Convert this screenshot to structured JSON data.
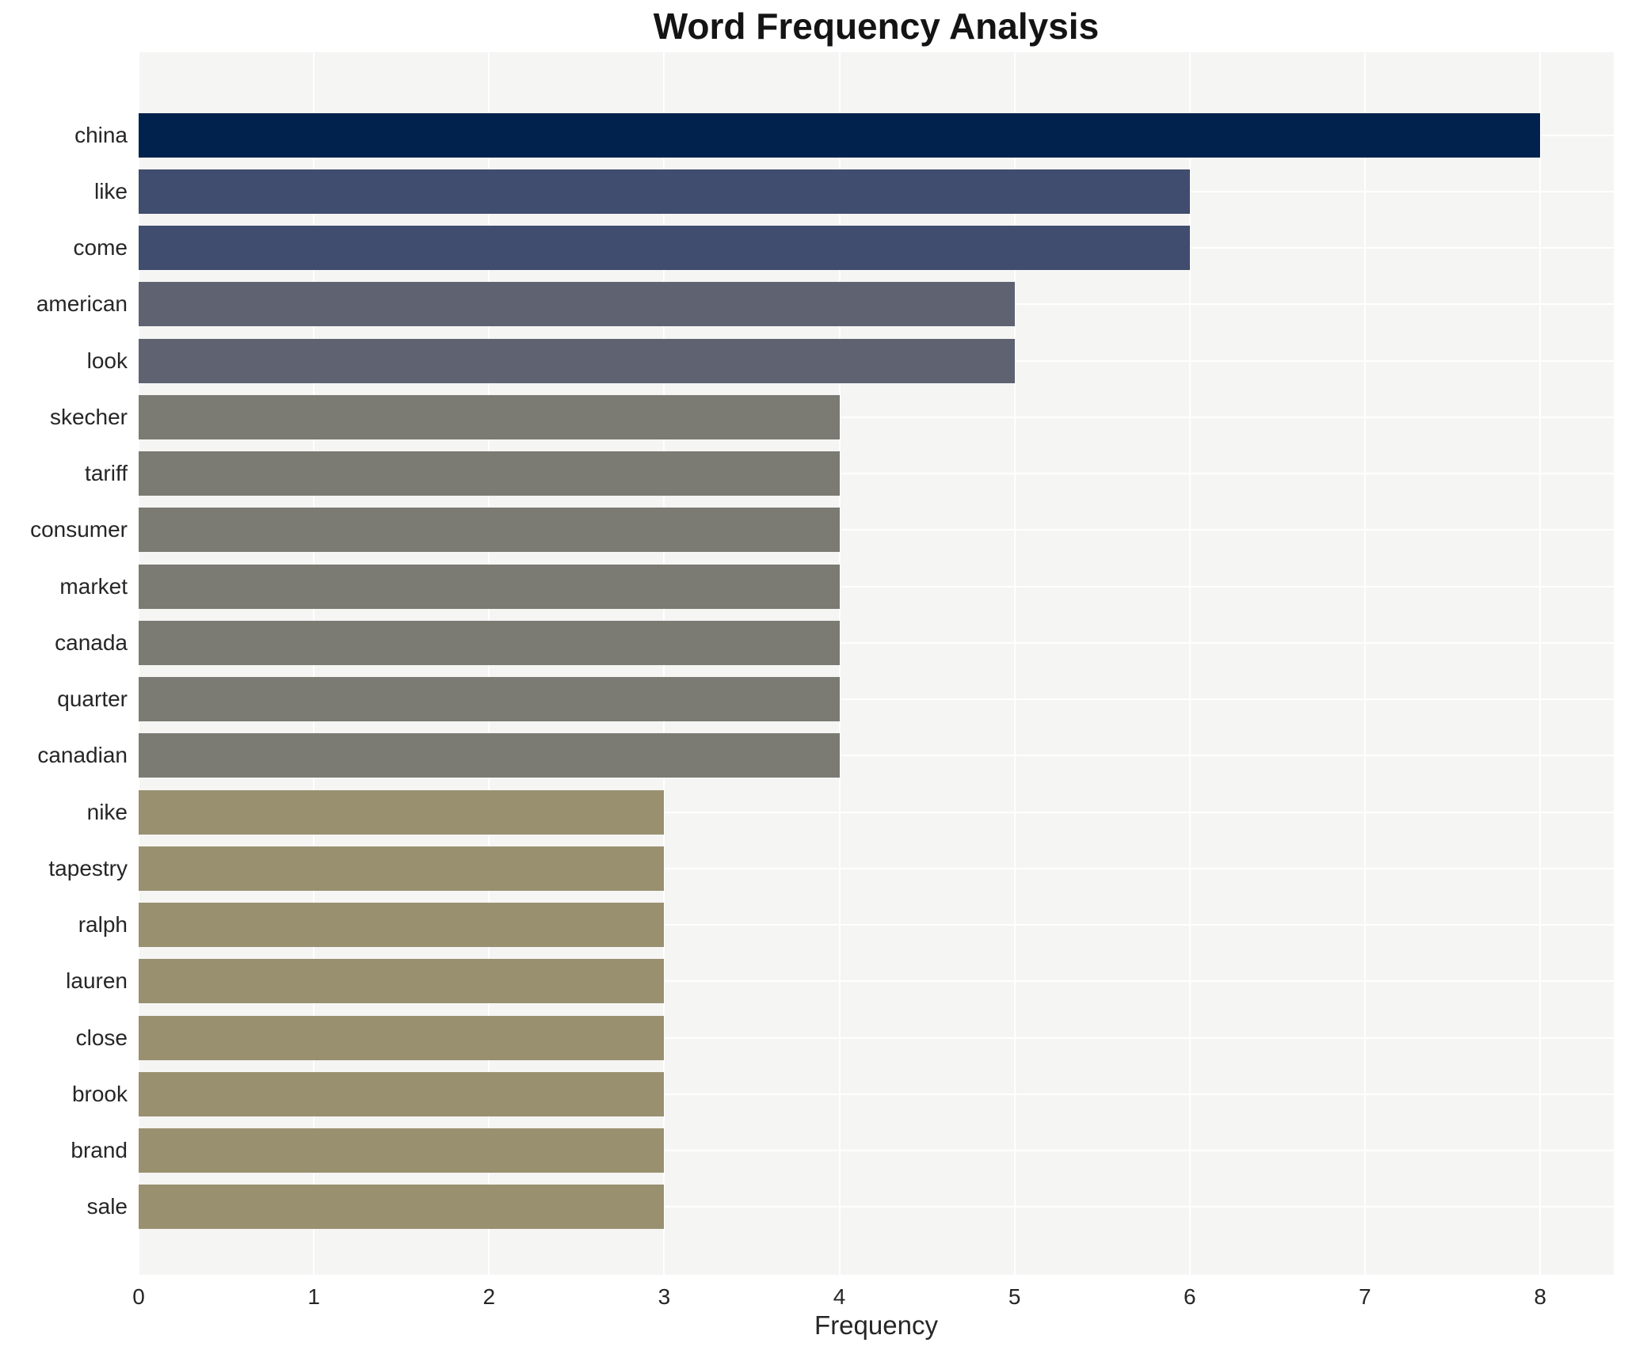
{
  "chart_data": {
    "type": "bar",
    "orientation": "horizontal",
    "title": "Word Frequency Analysis",
    "xlabel": "Frequency",
    "ylabel": "",
    "categories": [
      "china",
      "like",
      "come",
      "american",
      "look",
      "skecher",
      "tariff",
      "consumer",
      "market",
      "canada",
      "quarter",
      "canadian",
      "nike",
      "tapestry",
      "ralph",
      "lauren",
      "close",
      "brook",
      "brand",
      "sale"
    ],
    "values": [
      8,
      6,
      6,
      5,
      5,
      4,
      4,
      4,
      4,
      4,
      4,
      4,
      3,
      3,
      3,
      3,
      3,
      3,
      3,
      3
    ],
    "bar_colors": [
      "#01224d",
      "#414d6e",
      "#414d6e",
      "#5e6271",
      "#5e6271",
      "#7b7a73",
      "#7b7a73",
      "#7b7a73",
      "#7b7a73",
      "#7b7a73",
      "#7b7a73",
      "#7b7a73",
      "#999070",
      "#999070",
      "#999070",
      "#999070",
      "#999070",
      "#999070",
      "#999070",
      "#999070"
    ],
    "xlim": [
      0,
      8.42
    ],
    "xticks": [
      0,
      1,
      2,
      3,
      4,
      5,
      6,
      7,
      8
    ],
    "grid": true,
    "legend": false,
    "styles": {
      "plot_bg": "#f5f5f4",
      "grid_color": "#ffffff",
      "text_color": "#262626",
      "title_color": "#141414",
      "figure_bg": "#ffffff"
    }
  }
}
